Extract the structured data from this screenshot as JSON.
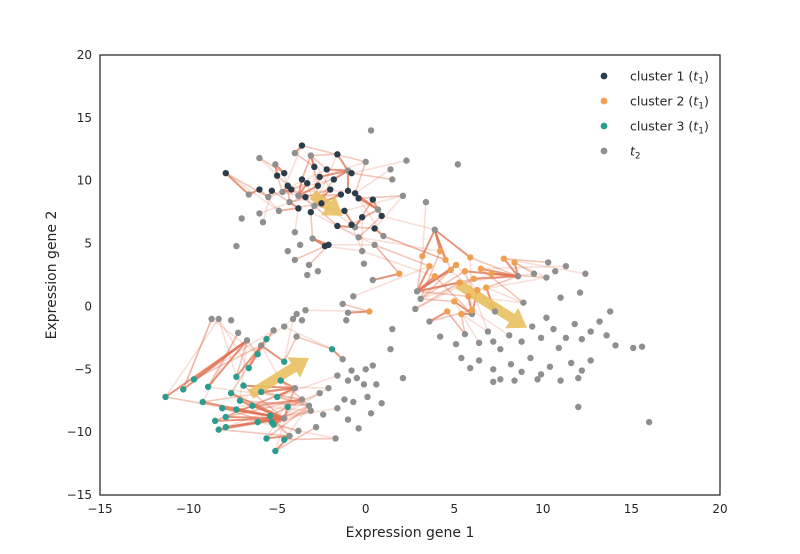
{
  "chart_data": {
    "type": "scatter",
    "title": "",
    "xlabel": "Expression gene 1",
    "ylabel": "Expression gene 2",
    "xlim": [
      -15,
      20
    ],
    "ylim": [
      -15,
      20
    ],
    "xticks": [
      -15,
      -10,
      -5,
      0,
      5,
      10,
      15,
      20
    ],
    "yticks": [
      -15,
      -10,
      -5,
      0,
      5,
      10,
      15,
      20
    ],
    "grid": false,
    "legend_position": "top-right",
    "legend": [
      {
        "label": "cluster 1",
        "sub": "1",
        "color": "#2b3d4a"
      },
      {
        "label": "cluster 2",
        "sub": "1",
        "color": "#f0a050"
      },
      {
        "label": "cluster 3",
        "sub": "1",
        "color": "#2a9d8f"
      },
      {
        "label": "",
        "sub": "2",
        "color": "#8f8f8f"
      }
    ],
    "colors": {
      "link": "#e07050",
      "arrow": "#e8c060"
    },
    "series": [
      {
        "name": "cluster 1 (t1)",
        "color": "#2b3d4a",
        "points": [
          [
            -7.9,
            10.6
          ],
          [
            -6.0,
            9.3
          ],
          [
            -5.3,
            9.2
          ],
          [
            -5.0,
            10.4
          ],
          [
            -4.6,
            10.6
          ],
          [
            -4.4,
            9.6
          ],
          [
            -4.2,
            9.3
          ],
          [
            -3.8,
            7.8
          ],
          [
            -3.6,
            10.1
          ],
          [
            -3.4,
            8.7
          ],
          [
            -3.3,
            9.8
          ],
          [
            -3.1,
            7.5
          ],
          [
            -2.9,
            11.1
          ],
          [
            -2.7,
            9.6
          ],
          [
            -2.6,
            10.3
          ],
          [
            -2.5,
            8.2
          ],
          [
            -2.2,
            10.9
          ],
          [
            -2.0,
            9.3
          ],
          [
            -1.8,
            10.1
          ],
          [
            -1.6,
            12.1
          ],
          [
            -1.4,
            8.9
          ],
          [
            -1.2,
            7.6
          ],
          [
            -1.0,
            9.2
          ],
          [
            -0.8,
            10.6
          ],
          [
            -0.6,
            9.0
          ],
          [
            -0.4,
            8.6
          ],
          [
            -0.2,
            7.1
          ],
          [
            0.4,
            8.5
          ],
          [
            0.5,
            6.2
          ],
          [
            0.9,
            7.2
          ],
          [
            -3.6,
            12.8
          ],
          [
            -2.3,
            4.8
          ],
          [
            -2.1,
            4.9
          ],
          [
            -1.6,
            6.4
          ],
          [
            -0.8,
            6.5
          ]
        ]
      },
      {
        "name": "cluster 2 (t1)",
        "color": "#f0a050",
        "points": [
          [
            1.9,
            2.6
          ],
          [
            3.2,
            4.0
          ],
          [
            3.6,
            3.2
          ],
          [
            3.9,
            2.4
          ],
          [
            4.2,
            4.4
          ],
          [
            4.5,
            3.7
          ],
          [
            4.8,
            2.9
          ],
          [
            5.1,
            3.3
          ],
          [
            5.3,
            1.9
          ],
          [
            5.6,
            2.8
          ],
          [
            5.9,
            3.9
          ],
          [
            6.1,
            2.2
          ],
          [
            6.3,
            1.3
          ],
          [
            6.5,
            3.0
          ],
          [
            5.8,
            0.8
          ],
          [
            5.0,
            0.4
          ],
          [
            4.6,
            -0.4
          ],
          [
            5.4,
            -0.6
          ],
          [
            6.0,
            -0.3
          ],
          [
            7.1,
            2.6
          ],
          [
            7.8,
            3.8
          ],
          [
            8.4,
            3.5
          ],
          [
            6.8,
            1.5
          ],
          [
            0.2,
            -0.4
          ]
        ]
      },
      {
        "name": "cluster 3 (t1)",
        "color": "#2a9d8f",
        "points": [
          [
            -11.3,
            -7.2
          ],
          [
            -10.3,
            -6.6
          ],
          [
            -9.7,
            -5.8
          ],
          [
            -9.2,
            -7.6
          ],
          [
            -8.9,
            -6.4
          ],
          [
            -8.5,
            -9.1
          ],
          [
            -8.3,
            -9.8
          ],
          [
            -8.1,
            -8.1
          ],
          [
            -7.9,
            -8.8
          ],
          [
            -7.6,
            -6.9
          ],
          [
            -7.3,
            -5.6
          ],
          [
            -7.1,
            -7.5
          ],
          [
            -6.9,
            -6.3
          ],
          [
            -6.6,
            -4.9
          ],
          [
            -6.4,
            -7.9
          ],
          [
            -6.1,
            -3.8
          ],
          [
            -5.9,
            -6.8
          ],
          [
            -5.6,
            -2.6
          ],
          [
            -5.4,
            -8.7
          ],
          [
            -5.2,
            -9.4
          ],
          [
            -5.0,
            -7.2
          ],
          [
            -4.8,
            -5.9
          ],
          [
            -4.6,
            -4.4
          ],
          [
            -4.4,
            -8.0
          ],
          [
            -5.6,
            -10.5
          ],
          [
            -5.1,
            -11.5
          ],
          [
            -4.6,
            -10.6
          ],
          [
            -6.1,
            -9.2
          ],
          [
            -5.3,
            -9.2
          ],
          [
            -1.9,
            -3.4
          ],
          [
            -7.9,
            -9.6
          ],
          [
            -7.3,
            -8.2
          ]
        ]
      },
      {
        "name": "t2",
        "color": "#8f8f8f",
        "points": [
          [
            0.3,
            14.0
          ],
          [
            -6.0,
            11.8
          ],
          [
            -5.1,
            11.3
          ],
          [
            -4.0,
            12.2
          ],
          [
            -3.1,
            12.0
          ],
          [
            2.3,
            11.6
          ],
          [
            5.2,
            11.3
          ],
          [
            0.0,
            11.5
          ],
          [
            -1.0,
            10.8
          ],
          [
            1.4,
            10.9
          ],
          [
            1.5,
            10.1
          ],
          [
            -6.6,
            8.9
          ],
          [
            -5.5,
            8.7
          ],
          [
            -4.7,
            9.1
          ],
          [
            -4.3,
            8.3
          ],
          [
            -3.8,
            8.8
          ],
          [
            -2.9,
            8.0
          ],
          [
            -6.0,
            7.4
          ],
          [
            -4.9,
            7.6
          ],
          [
            -7.0,
            7.0
          ],
          [
            -5.8,
            6.7
          ],
          [
            -4.0,
            5.9
          ],
          [
            -3.0,
            5.4
          ],
          [
            -3.7,
            4.9
          ],
          [
            -4.0,
            3.7
          ],
          [
            -3.3,
            2.5
          ],
          [
            -3.2,
            3.3
          ],
          [
            -7.3,
            4.8
          ],
          [
            -4.4,
            4.4
          ],
          [
            -2.7,
            2.8
          ],
          [
            0.7,
            7.7
          ],
          [
            2.1,
            8.8
          ],
          [
            3.4,
            8.3
          ],
          [
            3.9,
            6.1
          ],
          [
            1.0,
            5.6
          ],
          [
            0.5,
            4.9
          ],
          [
            -0.6,
            6.3
          ],
          [
            -0.4,
            5.5
          ],
          [
            -0.2,
            4.4
          ],
          [
            -0.1,
            3.4
          ],
          [
            0.4,
            2.1
          ],
          [
            -0.7,
            0.8
          ],
          [
            -1.3,
            0.2
          ],
          [
            -1.0,
            -0.5
          ],
          [
            -1.1,
            -1.1
          ],
          [
            2.9,
            1.2
          ],
          [
            3.1,
            0.6
          ],
          [
            2.8,
            -0.2
          ],
          [
            3.6,
            -1.2
          ],
          [
            1.5,
            -1.8
          ],
          [
            1.4,
            -3.4
          ],
          [
            4.2,
            -2.4
          ],
          [
            5.1,
            -3.0
          ],
          [
            5.6,
            -2.2
          ],
          [
            6.4,
            -2.9
          ],
          [
            6.9,
            -2.0
          ],
          [
            7.2,
            -2.8
          ],
          [
            7.6,
            -3.4
          ],
          [
            8.1,
            -2.3
          ],
          [
            8.8,
            -2.8
          ],
          [
            9.4,
            -1.6
          ],
          [
            9.9,
            -2.5
          ],
          [
            10.2,
            -0.9
          ],
          [
            10.6,
            -1.8
          ],
          [
            10.9,
            -3.3
          ],
          [
            11.3,
            -2.5
          ],
          [
            11.8,
            -1.4
          ],
          [
            12.2,
            -2.6
          ],
          [
            12.7,
            -2.0
          ],
          [
            13.2,
            -1.2
          ],
          [
            13.6,
            -2.3
          ],
          [
            14.1,
            -3.1
          ],
          [
            15.1,
            -3.3
          ],
          [
            15.6,
            -3.2
          ],
          [
            13.8,
            -0.4
          ],
          [
            8.6,
            2.4
          ],
          [
            9.5,
            2.6
          ],
          [
            10.2,
            2.3
          ],
          [
            10.7,
            2.8
          ],
          [
            11.3,
            3.2
          ],
          [
            10.3,
            3.5
          ],
          [
            11.0,
            0.7
          ],
          [
            12.1,
            1.1
          ],
          [
            12.4,
            2.6
          ],
          [
            5.4,
            -4.1
          ],
          [
            5.9,
            -4.9
          ],
          [
            6.4,
            -4.3
          ],
          [
            7.2,
            -5.0
          ],
          [
            7.6,
            -5.8
          ],
          [
            8.2,
            -4.6
          ],
          [
            8.8,
            -5.2
          ],
          [
            9.3,
            -4.1
          ],
          [
            9.9,
            -5.4
          ],
          [
            10.4,
            -4.8
          ],
          [
            11.0,
            -5.9
          ],
          [
            11.6,
            -4.5
          ],
          [
            12.2,
            -5.1
          ],
          [
            12.7,
            -4.3
          ],
          [
            12.0,
            -5.7
          ],
          [
            7.2,
            -6.0
          ],
          [
            8.4,
            -5.9
          ],
          [
            9.7,
            -5.8
          ],
          [
            12.0,
            -8.0
          ],
          [
            16.0,
            -9.2
          ],
          [
            6.0,
            -0.6
          ],
          [
            7.3,
            -0.4
          ],
          [
            8.9,
            0.3
          ],
          [
            -8.7,
            -1.0
          ],
          [
            -8.3,
            -1.0
          ],
          [
            -7.6,
            -1.1
          ],
          [
            -7.2,
            -2.1
          ],
          [
            -6.7,
            -2.7
          ],
          [
            -5.9,
            -3.1
          ],
          [
            -5.2,
            -1.9
          ],
          [
            -4.6,
            -1.6
          ],
          [
            -4.1,
            -1.0
          ],
          [
            -3.9,
            -2.4
          ],
          [
            -3.6,
            -1.1
          ],
          [
            -3.9,
            -0.6
          ],
          [
            -3.4,
            -0.3
          ],
          [
            -2.1,
            -6.5
          ],
          [
            -1.6,
            -5.5
          ],
          [
            -1.0,
            -5.9
          ],
          [
            -0.5,
            -5.7
          ],
          [
            -0.1,
            -6.2
          ],
          [
            -1.2,
            -7.4
          ],
          [
            -0.7,
            -7.6
          ],
          [
            0.1,
            -7.2
          ],
          [
            0.6,
            -6.2
          ],
          [
            0.9,
            -7.7
          ],
          [
            -1.6,
            -8.1
          ],
          [
            -2.4,
            -8.6
          ],
          [
            -1.0,
            -9.0
          ],
          [
            -0.4,
            -9.7
          ],
          [
            0.3,
            -8.5
          ],
          [
            -1.7,
            -10.5
          ],
          [
            -2.8,
            -9.6
          ],
          [
            -3.1,
            -8.3
          ],
          [
            -3.6,
            -7.4
          ],
          [
            -4.0,
            -6.5
          ],
          [
            -4.6,
            -8.9
          ],
          [
            -3.8,
            -9.9
          ],
          [
            -4.3,
            -10.3
          ],
          [
            2.1,
            -5.7
          ],
          [
            0.0,
            -5.0
          ],
          [
            -1.3,
            -4.2
          ],
          [
            -0.8,
            -5.1
          ],
          [
            0.4,
            -4.7
          ],
          [
            -2.6,
            -6.9
          ],
          [
            -3.2,
            -7.9
          ]
        ]
      }
    ],
    "arrows": [
      {
        "from": [
          -3.0,
          8.9
        ],
        "to": [
          -1.3,
          7.2
        ]
      },
      {
        "from": [
          5.2,
          1.8
        ],
        "to": [
          9.1,
          -1.7
        ]
      },
      {
        "from": [
          -6.5,
          -7.0
        ],
        "to": [
          -3.2,
          -4.1
        ]
      }
    ]
  }
}
